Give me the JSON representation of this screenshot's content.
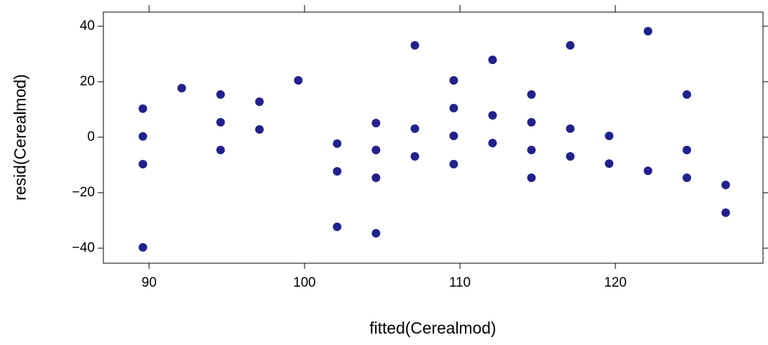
{
  "chart_data": {
    "type": "scatter",
    "xlabel": "fitted(Cerealmod)",
    "ylabel": "resid(Cerealmod)",
    "x": [
      89.6,
      89.6,
      89.6,
      89.6,
      92.1,
      94.6,
      94.6,
      94.6,
      97.1,
      97.1,
      99.6,
      102.1,
      102.1,
      102.1,
      104.6,
      104.6,
      104.6,
      104.6,
      107.1,
      107.1,
      107.1,
      109.6,
      109.6,
      109.6,
      109.6,
      112.1,
      112.1,
      112.1,
      114.6,
      114.6,
      114.6,
      114.6,
      117.1,
      117.1,
      117.1,
      119.6,
      119.6,
      122.1,
      122.1,
      124.6,
      124.6,
      124.6,
      127.1,
      127.1
    ],
    "y": [
      10.3,
      0.3,
      -9.7,
      -39.7,
      17.7,
      15.4,
      5.4,
      -4.6,
      12.8,
      2.8,
      20.5,
      -2.3,
      -12.3,
      -32.3,
      5.1,
      -4.6,
      -14.6,
      -34.6,
      33.1,
      3.1,
      -6.9,
      20.5,
      10.5,
      0.5,
      -9.7,
      27.9,
      7.9,
      -2.1,
      15.4,
      5.4,
      -4.6,
      -14.6,
      33.1,
      3.1,
      -6.9,
      0.5,
      -9.5,
      38.2,
      -12.1,
      15.4,
      -4.6,
      -14.6,
      -17.2,
      -27.2
    ],
    "color": "#21218c",
    "xlim": [
      87.06,
      129.5
    ],
    "ylim": [
      -45.4,
      45.1
    ],
    "xticks": [
      90,
      100,
      110,
      120
    ],
    "yticks": [
      {
        "value": -40,
        "label": "−40"
      },
      {
        "value": -20,
        "label": "−20"
      },
      0,
      20,
      40
    ]
  }
}
